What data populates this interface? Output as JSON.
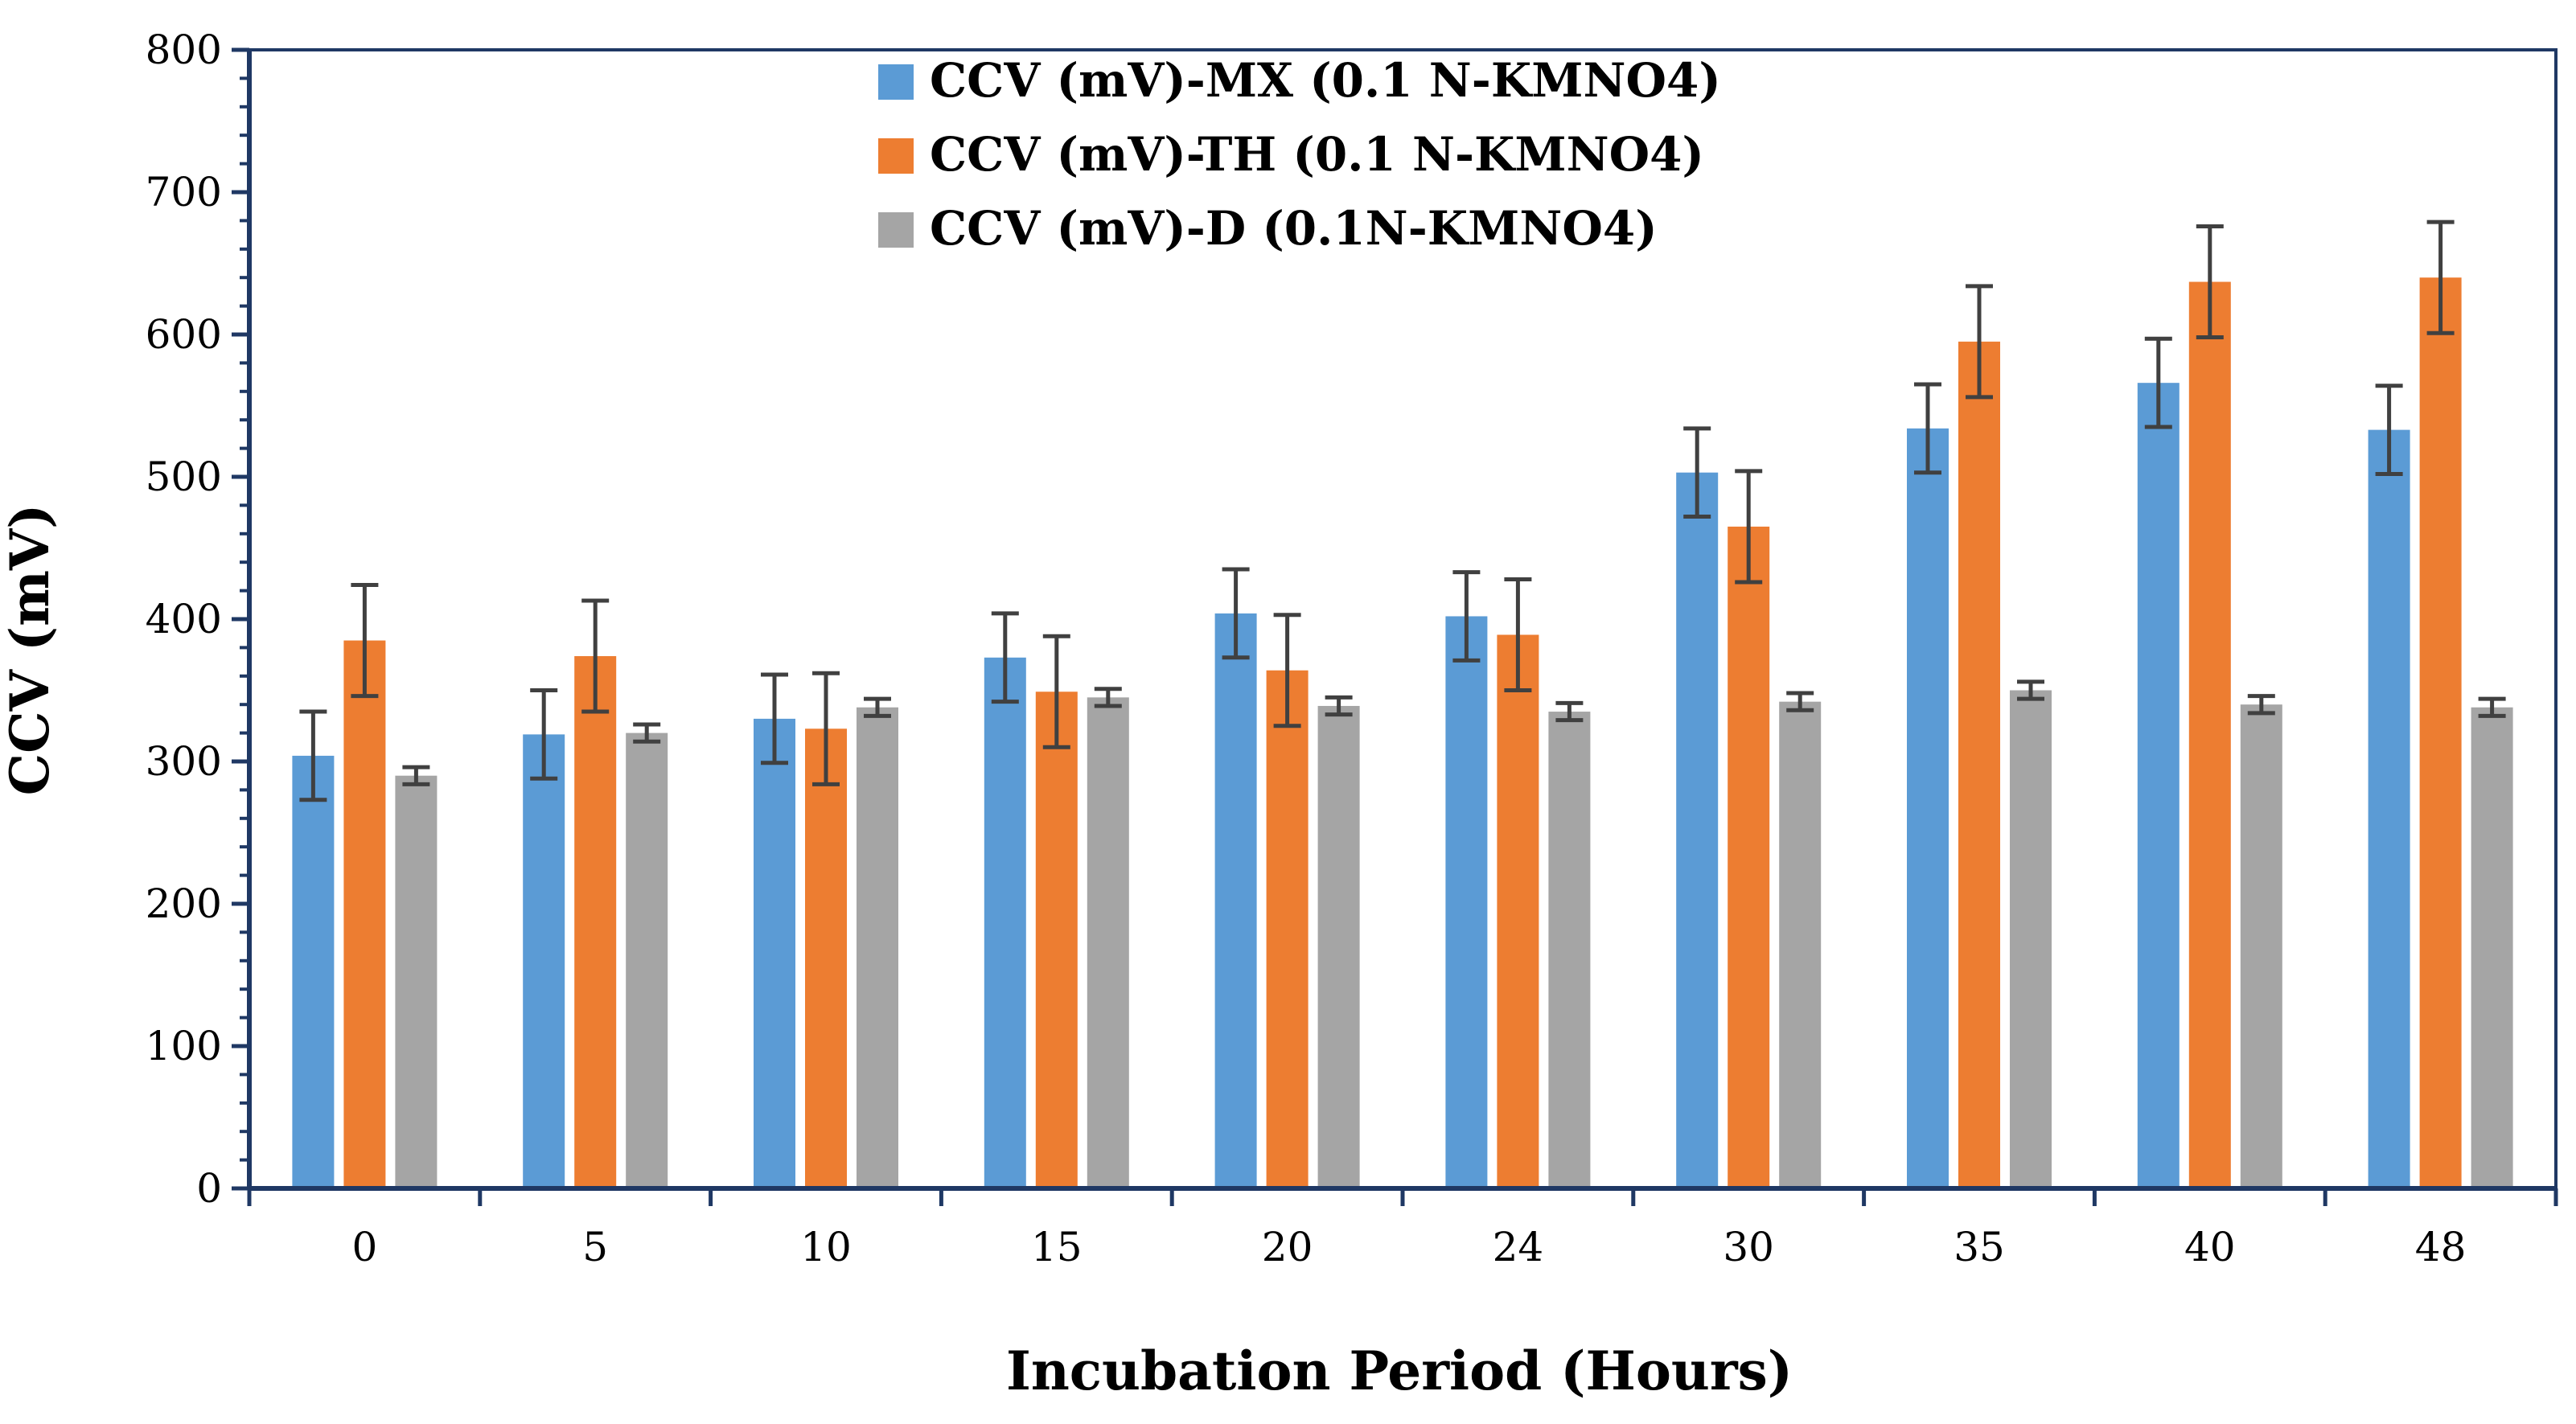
{
  "chart_data": {
    "type": "bar",
    "title": "",
    "xlabel": "Incubation Period (Hours)",
    "ylabel": "CCV (mV)",
    "ylim": [
      0,
      800
    ],
    "yticks": [
      0,
      100,
      200,
      300,
      400,
      500,
      600,
      700,
      800
    ],
    "grid": false,
    "legend_position": "top-center",
    "categories": [
      "0",
      "5",
      "10",
      "15",
      "20",
      "24",
      "30",
      "35",
      "40",
      "48"
    ],
    "series": [
      {
        "name": "CCV (mV)-MX (0.1 N-KMNO4)",
        "color": "#5B9BD5",
        "values": [
          304,
          319,
          330,
          373,
          404,
          402,
          503,
          534,
          566,
          533
        ],
        "errors": [
          31,
          31,
          31,
          31,
          31,
          31,
          31,
          31,
          31,
          31
        ]
      },
      {
        "name": "CCV (mV)-TH (0.1 N-KMNO4)",
        "color": "#ED7D31",
        "values": [
          385,
          374,
          323,
          349,
          364,
          389,
          465,
          595,
          637,
          640
        ],
        "errors": [
          39,
          39,
          39,
          39,
          39,
          39,
          39,
          39,
          39,
          39
        ]
      },
      {
        "name": "CCV (mV)-D (0.1N-KMNO4)",
        "color": "#A5A5A5",
        "values": [
          290,
          320,
          338,
          345,
          339,
          335,
          342,
          350,
          340,
          338
        ],
        "errors": [
          6,
          6,
          6,
          6,
          6,
          6,
          6,
          6,
          6,
          6
        ]
      }
    ],
    "axis_color": "#1F3864",
    "error_bar_color": "#404040"
  }
}
